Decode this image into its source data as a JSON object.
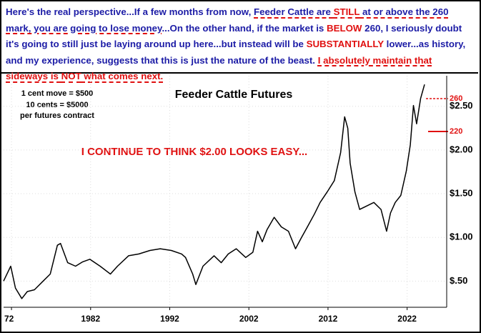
{
  "header": {
    "segments": [
      "Here's the real perspective...If a few months from now, ",
      "Feeder Cattle are ",
      "STILL",
      " at or above the 260 mark, you are going to lose money",
      "...On the other hand, if the market is ",
      "BELOW",
      " 260, I seriously doubt it's going to still just be laying around up here...but instead will be ",
      "SUBSTANTIALLY",
      " lower...as history, and my experience, suggests that this is just the nature of the beast. ",
      "I absolutely maintain that sideways is ",
      "NOT",
      " what comes next."
    ]
  },
  "chart_data": {
    "type": "line",
    "title": "Feeder Cattle Futures",
    "notes": [
      "1 cent move = $500",
      "10 cents = $5000",
      "per futures contract"
    ],
    "annotation": "I CONTINUE TO THINK $2.00 LOOKS EASY...",
    "reference_labels": [
      "260",
      "220"
    ],
    "x": [
      1971.0,
      1971.9,
      1972.5,
      1973.3,
      1974.0,
      1974.9,
      1976.0,
      1976.9,
      1977.8,
      1978.2,
      1979.1,
      1980.1,
      1981.0,
      1981.9,
      1983.2,
      1984.5,
      1985.4,
      1986.8,
      1988.1,
      1989.5,
      1990.8,
      1992.2,
      1993.5,
      1994.0,
      1994.9,
      1995.3,
      1996.2,
      1997.6,
      1998.5,
      1999.4,
      2000.4,
      2001.6,
      2002.5,
      2003.1,
      2003.7,
      2004.3,
      2005.2,
      2006.1,
      2007.0,
      2007.9,
      2008.6,
      2009.4,
      2010.3,
      2011.0,
      2011.9,
      2012.8,
      2013.6,
      2014.1,
      2014.5,
      2014.8,
      2015.4,
      2016.0,
      2016.9,
      2017.8,
      2018.7,
      2019.4,
      2019.9,
      2020.5,
      2021.2,
      2021.9,
      2022.4,
      2022.8,
      2023.2,
      2023.7,
      2024.2
    ],
    "values": [
      0.5,
      0.67,
      0.42,
      0.3,
      0.38,
      0.4,
      0.5,
      0.58,
      0.91,
      0.93,
      0.71,
      0.67,
      0.72,
      0.75,
      0.67,
      0.58,
      0.67,
      0.79,
      0.81,
      0.85,
      0.87,
      0.85,
      0.81,
      0.77,
      0.58,
      0.46,
      0.67,
      0.79,
      0.71,
      0.81,
      0.87,
      0.77,
      0.83,
      1.07,
      0.95,
      1.09,
      1.23,
      1.12,
      1.07,
      0.87,
      0.99,
      1.12,
      1.27,
      1.4,
      1.52,
      1.65,
      1.97,
      2.38,
      2.25,
      1.85,
      1.52,
      1.32,
      1.36,
      1.4,
      1.32,
      1.07,
      1.28,
      1.4,
      1.48,
      1.76,
      2.06,
      2.51,
      2.3,
      2.59,
      2.75
    ],
    "color": "#000000",
    "xlim": [
      1971,
      2027
    ],
    "xticks": [
      {
        "value": 1972,
        "label": "72"
      },
      1982,
      1992,
      2002,
      2012,
      2022
    ],
    "ylim": [
      0.2,
      2.85
    ],
    "yticks": [
      {
        "value": 0.5,
        "label": "$.50"
      },
      {
        "value": 1,
        "label": "$1.00"
      },
      {
        "value": 1.5,
        "label": "$1.50"
      },
      {
        "value": 2,
        "label": "$2.00"
      },
      {
        "value": 2.5,
        "label": "$2.50"
      }
    ],
    "grid": true
  }
}
